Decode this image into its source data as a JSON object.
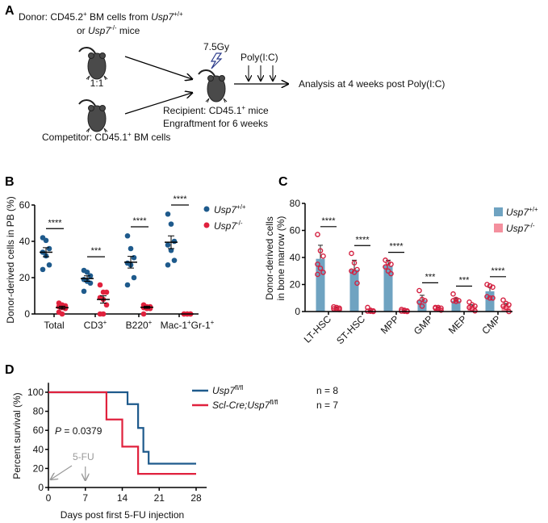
{
  "panel_a": {
    "letter": "A",
    "donor_line1": "Donor: CD45.2",
    "donor_sup": "+",
    "donor_line1b": " BM cells from ",
    "donor_gene": "Usp7",
    "donor_gene_sup": "+/+",
    "donor_line2a": "or ",
    "donor_gene2": "Usp7",
    "donor_gene2_sup": "-/-",
    "donor_line2b": " mice",
    "ratio": "1:1",
    "competitor": "Competitor: CD45.1",
    "competitor_sup": "+",
    "competitor_b": " BM cells",
    "irradiation": "7.5Gy",
    "polyic": "Poly(I:C)",
    "recipient": "Recipient: CD45.1",
    "recipient_sup": "+",
    "recipient_b": " mice",
    "engraftment": "Engraftment for 6 weeks",
    "analysis": "Analysis at 4 weeks post Poly(I:C)",
    "icons": [
      "mouse-icon",
      "lightning-icon",
      "arrow-icon"
    ]
  },
  "chart_data": [
    {
      "panel": "B",
      "type": "scatter",
      "ylabel": "Donor-derived cells in PB (%)",
      "ylim": [
        0,
        60
      ],
      "yticks": [
        "0",
        "20",
        "40",
        "60"
      ],
      "categories": [
        {
          "base": "Total",
          "sup": ""
        },
        {
          "base": "CD3",
          "sup": "+"
        },
        {
          "base": "B220",
          "sup": "+"
        },
        {
          "base": "Mac-1",
          "sup": "+",
          "base2": "Gr-1",
          "sup2": "+"
        }
      ],
      "significance": [
        "****",
        "***",
        "****",
        "****"
      ],
      "series": [
        {
          "name": "Usp7",
          "sup": "+/+",
          "color": "#1e5a8c",
          "means": [
            34,
            19.5,
            28.5,
            39.5
          ],
          "sem": [
            2.5,
            1.5,
            3.2,
            3.5
          ],
          "points": [
            [
              42,
              40.5,
              36,
              34,
              32,
              27,
              24.5
            ],
            [
              24,
              23,
              21,
              19,
              18,
              17,
              12.5
            ],
            [
              43,
              36,
              31,
              28,
              27,
              20,
              16
            ],
            [
              55,
              49.5,
              40,
              38,
              35,
              29.5,
              27
            ]
          ]
        },
        {
          "name": "Usp7",
          "sup": "-/-",
          "color": "#e0213d",
          "means": [
            3.5,
            8,
            3.7,
            0
          ],
          "sem": [
            0.8,
            2,
            0.6,
            0
          ],
          "points": [
            [
              6,
              5,
              4.5,
              4,
              3.5,
              3,
              1,
              0
            ],
            [
              16,
              12,
              12,
              9,
              8,
              5,
              0,
              0
            ],
            [
              5,
              4,
              4,
              3.5,
              3,
              3,
              0
            ],
            [
              0,
              0,
              0,
              0,
              0,
              0
            ]
          ]
        }
      ],
      "legend": "top-right"
    },
    {
      "panel": "C",
      "type": "bar",
      "ylabel_line1": "Donor-derived cells",
      "ylabel_line2": "in bone marrow (%)",
      "ylim": [
        0,
        80
      ],
      "yticks": [
        "0",
        "20",
        "40",
        "60",
        "80"
      ],
      "categories": [
        "LT-HSC",
        "ST-HSC",
        "MPP",
        "GMP",
        "MEP",
        "CMP"
      ],
      "significance": [
        "****",
        "****",
        "****",
        "***",
        "***",
        "****"
      ],
      "series": [
        {
          "name": "Usp7",
          "sup": "+/+",
          "color": "#6fa3c1",
          "values": [
            39,
            31,
            34,
            8.5,
            8,
            15
          ],
          "sem": [
            10,
            7,
            4,
            3.5,
            2,
            3
          ],
          "points": [
            [
              57,
              45,
              41,
              35,
              32,
              29,
              27.5
            ],
            [
              43,
              36,
              31,
              30,
              29,
              21
            ],
            [
              38,
              36,
              35,
              33,
              30,
              28
            ],
            [
              15.5,
              9,
              8,
              7,
              4
            ],
            [
              13,
              9,
              8,
              8,
              7.5
            ],
            [
              20,
              19,
              18,
              11,
              10,
              10
            ]
          ]
        },
        {
          "name": "Usp7",
          "sup": "-/-",
          "color": "#f4909e",
          "values": [
            2.5,
            0.5,
            0.5,
            2.5,
            4,
            4.5
          ],
          "sem": [
            0.5,
            0.5,
            0.3,
            0.5,
            1,
            1.5
          ],
          "points": [
            [
              3.5,
              3,
              2.5,
              2,
              2,
              1.5
            ],
            [
              3,
              1,
              0.5,
              0.3,
              0.2,
              0
            ],
            [
              1.5,
              1,
              0.5,
              0.3,
              0.2,
              0
            ],
            [
              3,
              3,
              2.5,
              2.5,
              2,
              1
            ],
            [
              7,
              5,
              4,
              3,
              2,
              0.5
            ],
            [
              8.5,
              6,
              5,
              4,
              3,
              0
            ]
          ]
        }
      ],
      "point_color": "#d42040",
      "legend": "top-right"
    },
    {
      "panel": "D",
      "type": "line",
      "ylabel": "Percent survival (%)",
      "xlabel": "Days post first 5-FU injection",
      "xlim": [
        0,
        30
      ],
      "ylim": [
        0,
        110
      ],
      "xticks": [
        "0",
        "7",
        "14",
        "21",
        "28"
      ],
      "yticks": [
        "0",
        "20",
        "40",
        "60",
        "80",
        "100"
      ],
      "p_label": "P",
      "p_value": " = 0.0379",
      "annotation": "5-FU",
      "annotation_days": [
        0,
        7
      ],
      "series": [
        {
          "name": "Usp7",
          "sup": "fl/fl",
          "n": "n = 8",
          "color": "#1e5a8c",
          "steps": [
            [
              0,
              100
            ],
            [
              15,
              87.5
            ],
            [
              17,
              62.5
            ],
            [
              18,
              37.5
            ],
            [
              19,
              25
            ],
            [
              28,
              25
            ]
          ]
        },
        {
          "name": "Scl-Cre;Usp7",
          "sup": "fl/fl",
          "n": "n = 7",
          "color": "#e0213d",
          "steps": [
            [
              0,
              100
            ],
            [
              11,
              71.4
            ],
            [
              14,
              42.9
            ],
            [
              17,
              14.3
            ],
            [
              28,
              14.3
            ]
          ]
        }
      ],
      "legend": "top-right"
    }
  ]
}
